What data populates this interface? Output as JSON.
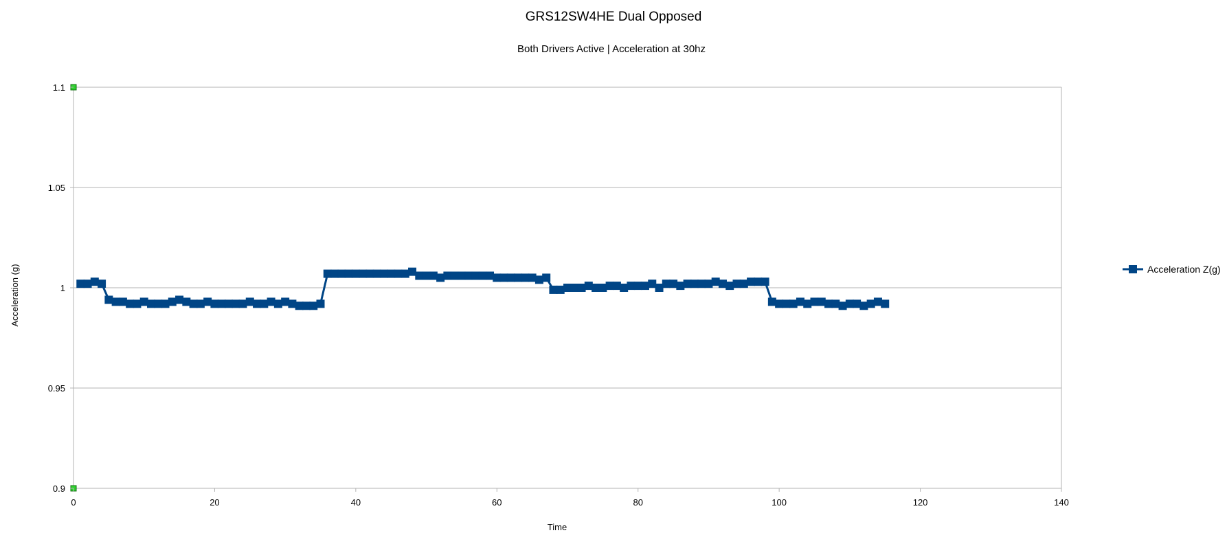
{
  "chart_data": {
    "type": "line",
    "title": "GRS12SW4HE Dual Opposed",
    "subtitle": "Both Drivers Active | Acceleration at 30hz",
    "xlabel": "Time",
    "ylabel": "Acceleration (g)",
    "xlim": [
      0,
      140
    ],
    "ylim": [
      0.9,
      1.1
    ],
    "x_ticks": [
      0,
      20,
      40,
      60,
      80,
      100,
      120,
      140
    ],
    "x_tick_labels": [
      "0",
      "20",
      "40",
      "60",
      "80",
      "100",
      "120",
      "140"
    ],
    "y_ticks": [
      0.9,
      0.95,
      1.0,
      1.05,
      1.1
    ],
    "y_tick_labels": [
      "0.9",
      "0.95",
      "1",
      "1.05",
      "1.1"
    ],
    "grid": true,
    "legend_position": "right",
    "series_color": "#004586",
    "endpoint_marker_color": "#2fd12f",
    "series": [
      {
        "name": "Acceleration Z(g)",
        "x": [
          1,
          2,
          3,
          4,
          5,
          6,
          7,
          8,
          9,
          10,
          11,
          12,
          13,
          14,
          15,
          16,
          17,
          18,
          19,
          20,
          21,
          22,
          23,
          24,
          25,
          26,
          27,
          28,
          29,
          30,
          31,
          32,
          33,
          34,
          35,
          36,
          37,
          38,
          39,
          40,
          41,
          42,
          43,
          44,
          45,
          46,
          47,
          48,
          49,
          50,
          51,
          52,
          53,
          54,
          55,
          56,
          57,
          58,
          59,
          60,
          61,
          62,
          63,
          64,
          65,
          66,
          67,
          68,
          69,
          70,
          71,
          72,
          73,
          74,
          75,
          76,
          77,
          78,
          79,
          80,
          81,
          82,
          83,
          84,
          85,
          86,
          87,
          88,
          89,
          90,
          91,
          92,
          93,
          94,
          95,
          96,
          97,
          98,
          99,
          100,
          101,
          102,
          103,
          104,
          105,
          106,
          107,
          108,
          109,
          110,
          111,
          112,
          113,
          114,
          115
        ],
        "values": [
          1.002,
          1.002,
          1.003,
          1.002,
          0.994,
          0.993,
          0.993,
          0.992,
          0.992,
          0.993,
          0.992,
          0.992,
          0.992,
          0.993,
          0.994,
          0.993,
          0.992,
          0.992,
          0.993,
          0.992,
          0.992,
          0.992,
          0.992,
          0.992,
          0.993,
          0.992,
          0.992,
          0.993,
          0.992,
          0.993,
          0.992,
          0.991,
          0.991,
          0.991,
          0.992,
          1.007,
          1.007,
          1.007,
          1.007,
          1.007,
          1.007,
          1.007,
          1.007,
          1.007,
          1.007,
          1.007,
          1.007,
          1.008,
          1.006,
          1.006,
          1.006,
          1.005,
          1.006,
          1.006,
          1.006,
          1.006,
          1.006,
          1.006,
          1.006,
          1.005,
          1.005,
          1.005,
          1.005,
          1.005,
          1.005,
          1.004,
          1.005,
          0.999,
          0.999,
          1.0,
          1.0,
          1.0,
          1.001,
          1.0,
          1.0,
          1.001,
          1.001,
          1.0,
          1.001,
          1.001,
          1.001,
          1.002,
          1.0,
          1.002,
          1.002,
          1.001,
          1.002,
          1.002,
          1.002,
          1.002,
          1.003,
          1.002,
          1.001,
          1.002,
          1.002,
          1.003,
          1.003,
          1.003,
          0.993,
          0.992,
          0.992,
          0.992,
          0.993,
          0.992,
          0.993,
          0.993,
          0.992,
          0.992,
          0.991,
          0.992,
          0.992,
          0.991,
          0.992,
          0.993,
          0.992
        ]
      }
    ]
  }
}
